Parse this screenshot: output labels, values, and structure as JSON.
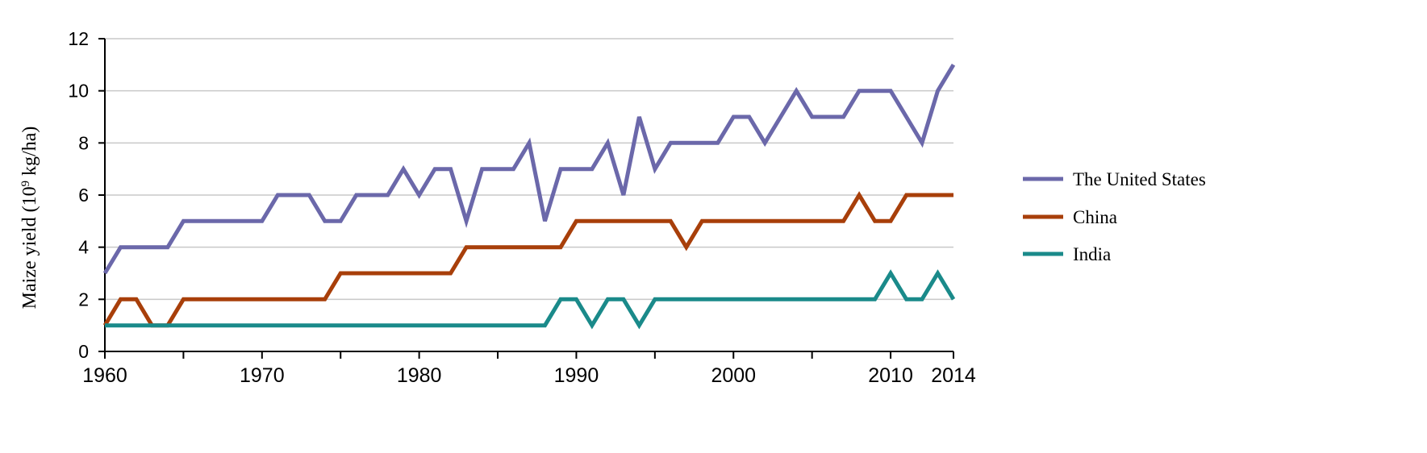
{
  "chart_data": {
    "type": "line",
    "title": "",
    "xlabel": "",
    "ylabel": "Maize yield (10",
    "ylabel_sup": "9",
    "ylabel_unit": " kg/ha)",
    "xlim": [
      1960,
      2014
    ],
    "ylim": [
      0,
      12
    ],
    "x_ticks": [
      1960,
      1970,
      1980,
      1990,
      2000,
      2010,
      2014
    ],
    "y_ticks": [
      0,
      2,
      4,
      6,
      8,
      10,
      12
    ],
    "grid": "horizontal",
    "legend_position": "right",
    "x": [
      1960,
      1961,
      1962,
      1963,
      1964,
      1965,
      1966,
      1967,
      1968,
      1969,
      1970,
      1971,
      1972,
      1973,
      1974,
      1975,
      1976,
      1977,
      1978,
      1979,
      1980,
      1981,
      1982,
      1983,
      1984,
      1985,
      1986,
      1987,
      1988,
      1989,
      1990,
      1991,
      1992,
      1993,
      1994,
      1995,
      1996,
      1997,
      1998,
      1999,
      2000,
      2001,
      2002,
      2003,
      2004,
      2005,
      2006,
      2007,
      2008,
      2009,
      2010,
      2011,
      2012,
      2013,
      2014
    ],
    "series": [
      {
        "name": "The United States",
        "color": "#6b68aa",
        "values": [
          3,
          4,
          4,
          4,
          4,
          5,
          5,
          5,
          5,
          5,
          5,
          6,
          6,
          6,
          5,
          5,
          6,
          6,
          6,
          7,
          6,
          7,
          7,
          5,
          7,
          7,
          7,
          8,
          5,
          7,
          7,
          7,
          8,
          6,
          9,
          7,
          8,
          8,
          8,
          8,
          9,
          9,
          8,
          9,
          10,
          9,
          9,
          9,
          10,
          10,
          10,
          9,
          8,
          10,
          11
        ]
      },
      {
        "name": "China",
        "color": "#a83f0a",
        "values": [
          1,
          2,
          2,
          1,
          1,
          2,
          2,
          2,
          2,
          2,
          2,
          2,
          2,
          2,
          2,
          3,
          3,
          3,
          3,
          3,
          3,
          3,
          3,
          4,
          4,
          4,
          4,
          4,
          4,
          4,
          5,
          5,
          5,
          5,
          5,
          5,
          5,
          4,
          5,
          5,
          5,
          5,
          5,
          5,
          5,
          5,
          5,
          5,
          6,
          5,
          5,
          6,
          6,
          6,
          6
        ]
      },
      {
        "name": "India",
        "color": "#1a8a8a",
        "values": [
          1,
          1,
          1,
          1,
          1,
          1,
          1,
          1,
          1,
          1,
          1,
          1,
          1,
          1,
          1,
          1,
          1,
          1,
          1,
          1,
          1,
          1,
          1,
          1,
          1,
          1,
          1,
          1,
          1,
          2,
          2,
          1,
          2,
          2,
          1,
          2,
          2,
          2,
          2,
          2,
          2,
          2,
          2,
          2,
          2,
          2,
          2,
          2,
          2,
          2,
          3,
          2,
          2,
          3,
          2
        ]
      }
    ]
  }
}
